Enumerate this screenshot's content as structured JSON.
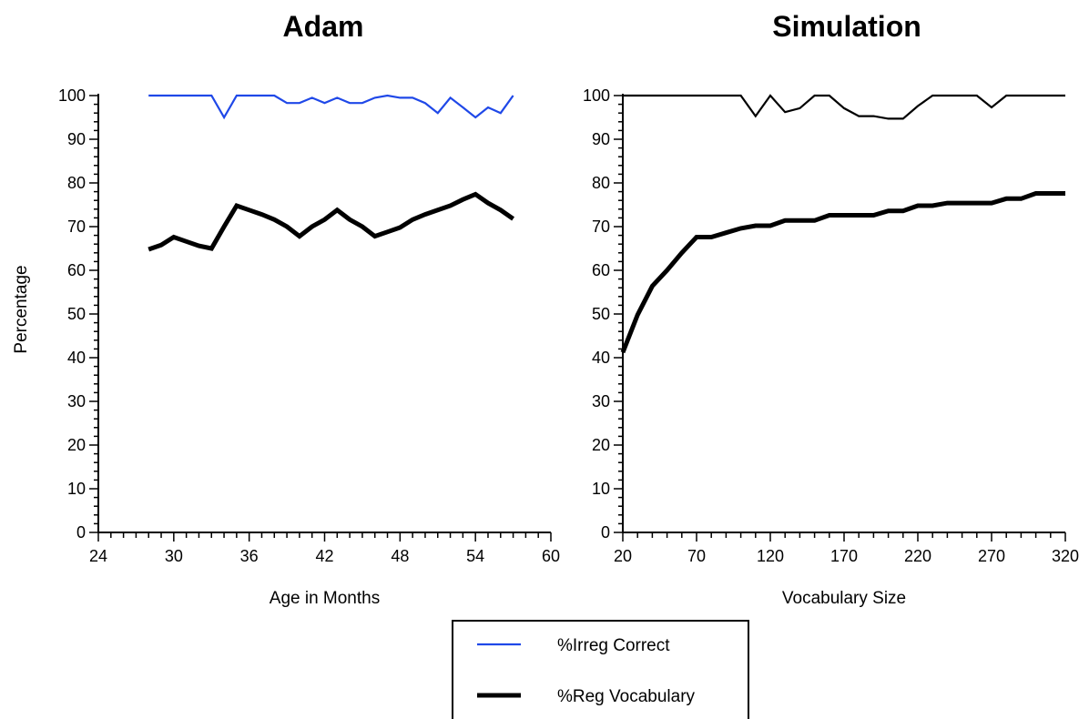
{
  "chart_data": [
    {
      "type": "line",
      "title": "Adam",
      "xlabel": "Age in Months",
      "ylabel": "Percentage",
      "xlim": [
        24,
        60
      ],
      "ylim": [
        0,
        100
      ],
      "xticks": [
        "24",
        "30",
        "36",
        "42",
        "48",
        "54",
        "60"
      ],
      "yticks": [
        "0",
        "10",
        "20",
        "30",
        "40",
        "50",
        "60",
        "70",
        "80",
        "90",
        "100"
      ],
      "series": [
        {
          "name": "%Irreg Correct",
          "color": "#1f48e8",
          "x": [
            28,
            29,
            30,
            31,
            32,
            33,
            34,
            35,
            36,
            37,
            38,
            39,
            40,
            41,
            42,
            43,
            44,
            45,
            46,
            47,
            48,
            49,
            50,
            51,
            52,
            53,
            54,
            55,
            56,
            57
          ],
          "y": [
            100,
            100,
            100,
            100,
            100,
            100,
            95,
            100,
            100,
            100,
            100,
            98.3,
            98.3,
            99.5,
            98.3,
            99.5,
            98.3,
            98.3,
            99.5,
            100,
            99.5,
            99.5,
            98.3,
            96,
            99.5,
            97.3,
            95,
            97.3,
            96,
            100
          ]
        },
        {
          "name": "%Reg Vocabulary",
          "color": "#000000",
          "x": [
            28,
            29,
            30,
            31,
            32,
            33,
            34,
            35,
            36,
            37,
            38,
            39,
            40,
            41,
            42,
            43,
            44,
            45,
            46,
            47,
            48,
            49,
            50,
            51,
            52,
            53,
            54,
            55,
            56,
            57
          ],
          "y": [
            64.8,
            65.8,
            67.6,
            66.6,
            65.6,
            65,
            70,
            74.8,
            73.8,
            72.8,
            71.6,
            70,
            67.8,
            70,
            71.6,
            73.8,
            71.6,
            70,
            67.8,
            68.8,
            69.8,
            71.6,
            72.8,
            73.8,
            74.8,
            76.2,
            77.4,
            75.4,
            73.8,
            71.8
          ]
        }
      ]
    },
    {
      "type": "line",
      "title": "Simulation",
      "xlabel": "Vocabulary Size",
      "ylabel": "",
      "xlim": [
        20,
        320
      ],
      "ylim": [
        0,
        100
      ],
      "xticks": [
        "20",
        "70",
        "120",
        "170",
        "220",
        "270",
        "320"
      ],
      "yticks": [
        "0",
        "10",
        "20",
        "30",
        "40",
        "50",
        "60",
        "70",
        "80",
        "90",
        "100"
      ],
      "series": [
        {
          "name": "%Irreg Correct",
          "color": "#000000",
          "x": [
            20,
            30,
            40,
            50,
            60,
            70,
            80,
            90,
            100,
            110,
            120,
            130,
            140,
            150,
            160,
            170,
            180,
            190,
            200,
            210,
            220,
            230,
            240,
            250,
            260,
            270,
            280,
            290,
            300,
            310,
            320
          ],
          "y": [
            100,
            100,
            100,
            100,
            100,
            100,
            100,
            100,
            100,
            95.3,
            100,
            96.2,
            97.1,
            100,
            100,
            97.1,
            95.3,
            95.3,
            94.7,
            94.7,
            97.6,
            100,
            100,
            100,
            100,
            97.3,
            100,
            100,
            100,
            100,
            100
          ]
        },
        {
          "name": "%Reg Vocabulary",
          "color": "#000000",
          "x": [
            20,
            30,
            40,
            50,
            60,
            70,
            80,
            90,
            100,
            110,
            120,
            130,
            140,
            150,
            160,
            170,
            180,
            190,
            200,
            210,
            220,
            230,
            240,
            250,
            260,
            270,
            280,
            290,
            300,
            310,
            320
          ],
          "y": [
            41.2,
            49.8,
            56.4,
            60,
            64,
            67.6,
            67.6,
            68.6,
            69.6,
            70.2,
            70.2,
            71.4,
            71.4,
            71.4,
            72.6,
            72.6,
            72.6,
            72.6,
            73.6,
            73.6,
            74.8,
            74.8,
            75.4,
            75.4,
            75.4,
            75.4,
            76.4,
            76.4,
            77.6,
            77.6,
            77.6
          ]
        }
      ]
    }
  ],
  "legend": {
    "placement": "bottom-center",
    "items": [
      {
        "label": "%Irreg Correct",
        "color": "#1f48e8"
      },
      {
        "label": "%Reg Vocabulary",
        "color": "#000000"
      }
    ]
  }
}
